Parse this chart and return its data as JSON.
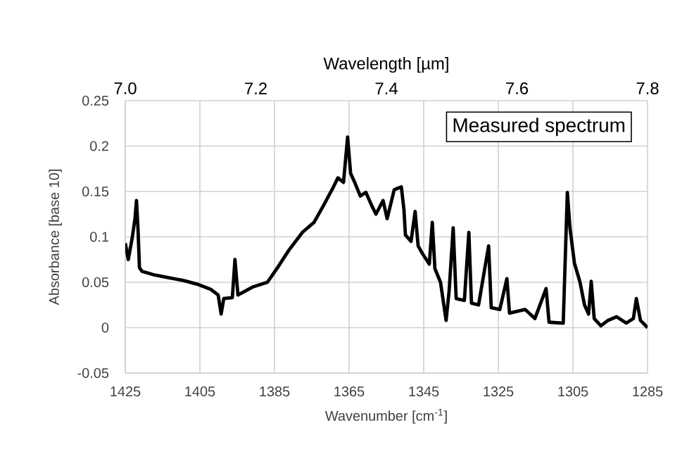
{
  "chart_data": {
    "type": "line",
    "xlabel": "Wavenumber [cm$^{-1}$]",
    "ylabel": "Absorbance  [base 10]",
    "x2label": "Wavelength  [µm]",
    "annotations": [
      "Measured spectrum"
    ],
    "xlim": [
      1425,
      1285
    ],
    "xticks": [
      1425,
      1405,
      1385,
      1365,
      1345,
      1325,
      1305,
      1285
    ],
    "ylim": [
      -0.05,
      0.25
    ],
    "yticks": [
      -0.05,
      0,
      0.05,
      0.1,
      0.15,
      0.2,
      0.25
    ],
    "x2lim": [
      7.0,
      7.8
    ],
    "x2ticks": [
      {
        "value": 7.0,
        "label": "7.0"
      },
      {
        "value": 7.2,
        "label": "7.2"
      },
      {
        "value": 7.4,
        "label": "7.4"
      },
      {
        "value": 7.6,
        "label": "7.6"
      },
      {
        "value": 7.8,
        "label": "7.8"
      }
    ],
    "grid": true,
    "series": [
      {
        "color": "#000000",
        "x": [
          1425,
          1424.2,
          1423.1,
          1422.4,
          1422.0,
          1421.6,
          1421.2,
          1420.5,
          1417.1,
          1413.3,
          1409.5,
          1405.8,
          1402.0,
          1400.1,
          1399.3,
          1398.6,
          1396.3,
          1395.6,
          1394.8,
          1390.7,
          1386.9,
          1384.2,
          1381.2,
          1377.5,
          1374.4,
          1371.8,
          1369.2,
          1368.0,
          1366.5,
          1365.4,
          1364.6,
          1363.5,
          1362.0,
          1360.5,
          1359.0,
          1357.8,
          1355.9,
          1354.8,
          1352.9,
          1351.0,
          1350.3,
          1349.9,
          1348.4,
          1347.3,
          1346.5,
          1345.4,
          1343.5,
          1342.7,
          1342.0,
          1340.5,
          1339.0,
          1338.2,
          1337.1,
          1336.3,
          1334.1,
          1332.9,
          1332.2,
          1330.3,
          1327.6,
          1326.9,
          1324.6,
          1322.7,
          1322.0,
          1317.8,
          1315.2,
          1312.2,
          1311.4,
          1307.6,
          1306.5,
          1305.8,
          1304.6,
          1303.1,
          1301.9,
          1300.8,
          1300.1,
          1299.3,
          1297.5,
          1295.6,
          1293.3,
          1290.7,
          1288.8,
          1288.0,
          1286.9,
          1285.0
        ],
        "values": [
          0.093,
          0.075,
          0.1,
          0.12,
          0.14,
          0.11,
          0.066,
          0.062,
          0.058,
          0.055,
          0.052,
          0.048,
          0.042,
          0.036,
          0.015,
          0.032,
          0.033,
          0.075,
          0.036,
          0.045,
          0.05,
          0.066,
          0.085,
          0.105,
          0.116,
          0.135,
          0.155,
          0.165,
          0.16,
          0.21,
          0.17,
          0.16,
          0.145,
          0.149,
          0.135,
          0.125,
          0.14,
          0.12,
          0.152,
          0.155,
          0.13,
          0.102,
          0.095,
          0.128,
          0.09,
          0.082,
          0.07,
          0.116,
          0.065,
          0.05,
          0.008,
          0.04,
          0.11,
          0.032,
          0.03,
          0.105,
          0.027,
          0.025,
          0.09,
          0.022,
          0.02,
          0.054,
          0.016,
          0.02,
          0.01,
          0.043,
          0.006,
          0.005,
          0.149,
          0.11,
          0.071,
          0.05,
          0.025,
          0.015,
          0.051,
          0.01,
          0.002,
          0.008,
          0.012,
          0.005,
          0.01,
          0.032,
          0.008,
          0.0
        ]
      }
    ]
  }
}
